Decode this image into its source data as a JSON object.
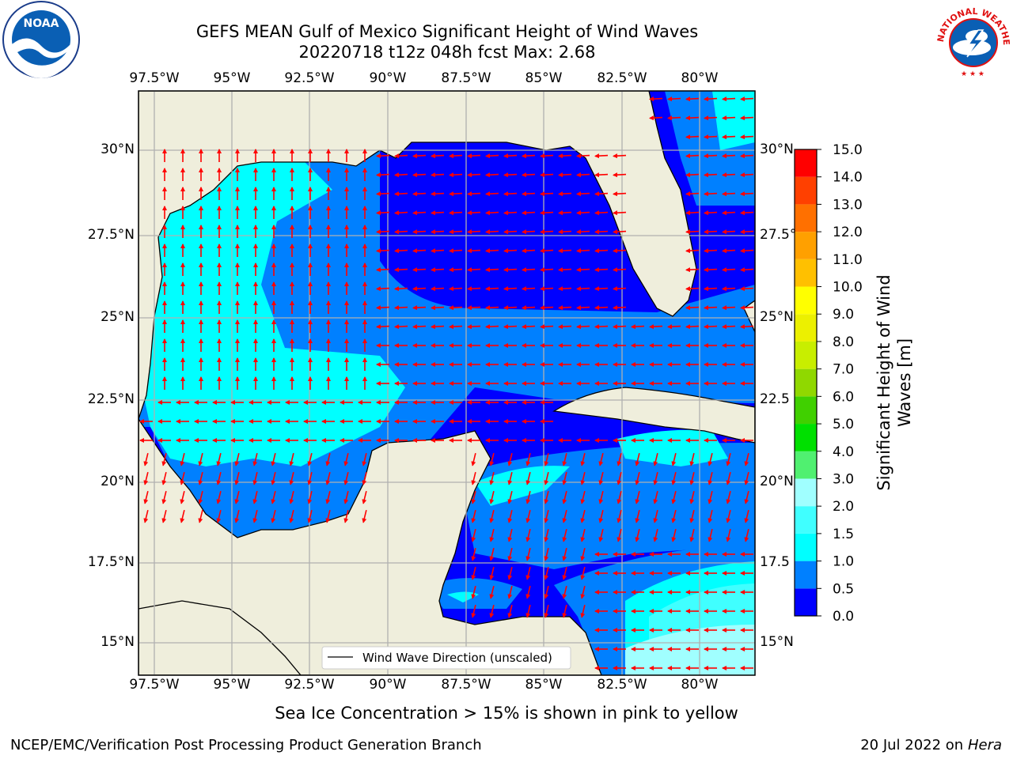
{
  "title": {
    "line1": "GEFS MEAN Gulf of Mexico Significant Height of Wind Waves",
    "line2": "20220718 t12z 048h fcst   Max: 2.68"
  },
  "logos": {
    "left": {
      "name": "noaa-logo",
      "text": "NOAA"
    },
    "right": {
      "name": "nws-logo",
      "text": "NATIONAL WEATHER SERVICE"
    }
  },
  "axes": {
    "lon_ticks": [
      "97.5°W",
      "95°W",
      "92.5°W",
      "90°W",
      "87.5°W",
      "85°W",
      "82.5°W",
      "80°W"
    ],
    "lat_ticks_left": [
      "30°N",
      "27.5°N",
      "25°N",
      "22.5°N",
      "20°N",
      "17.5°N",
      "15°N"
    ],
    "lat_ticks_right": [
      "30°N",
      "27.5°",
      "25°N",
      "22.5",
      "20°N",
      "17.5",
      "15°N"
    ]
  },
  "map": {
    "lon_range": [
      -98.0,
      -78.3
    ],
    "lat_range": [
      14.0,
      31.8
    ],
    "land_color": "#efeedc",
    "grid": true,
    "arrow_color": "#ff0000"
  },
  "legend": {
    "label": "Wind Wave Direction (unscaled)",
    "placement": "bottom-center"
  },
  "colorbar": {
    "label": "Significant Height of Wind Waves [m]",
    "label_line1": "Significant Height of Wind",
    "label_line2": "Waves [m]",
    "ticks": [
      "0.0",
      "0.5",
      "1.0",
      "1.5",
      "2.0",
      "3.0",
      "4.0",
      "5.0",
      "6.0",
      "7.0",
      "8.0",
      "9.0",
      "10.0",
      "11.0",
      "12.0",
      "13.0",
      "14.0",
      "15.0"
    ],
    "colors": [
      "#0000ff",
      "#0080ff",
      "#00ffff",
      "#40ffff",
      "#a0ffff",
      "#50f070",
      "#00e000",
      "#40d000",
      "#90d800",
      "#c8ee00",
      "#ecf000",
      "#ffff00",
      "#ffc000",
      "#ffa000",
      "#ff7000",
      "#ff4000",
      "#ff0000"
    ]
  },
  "note": "Sea Ice Concentration > 15% is shown in pink to yellow",
  "footer": {
    "left": "NCEP/EMC/Verification Post Processing Product Generation Branch",
    "right_date": "20 Jul 2022 on ",
    "right_machine": "Hera"
  }
}
